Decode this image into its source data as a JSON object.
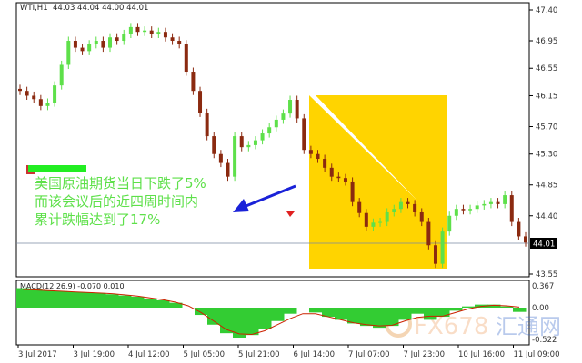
{
  "header": {
    "symbol": "WTI,H1",
    "ohlc": "44.03 44.04 44.00 44.01"
  },
  "annotation": {
    "lines": [
      "美国原油期货当日下跌了5%",
      "而该会议后的近四周时间内",
      "累计跌幅达到了17%"
    ],
    "text_color": "#5ee04a"
  },
  "watermark": "FX678 汇通网",
  "colors": {
    "bull": "#5ee04a",
    "bear": "#8b2a10",
    "highlight": "#ffd400",
    "arrow": "#1a22d8",
    "macd_hist": "#33cc33",
    "signal": "#cc2200"
  },
  "chart_data": [
    {
      "type": "candlestick",
      "title": "WTI,H1",
      "y_ticks": [
        "47.40",
        "46.95",
        "46.55",
        "46.15",
        "45.70",
        "45.30",
        "44.85",
        "44.40",
        "43.55"
      ],
      "ylim": [
        43.55,
        47.4
      ],
      "current_price": "44.01",
      "x_ticks": [
        "3 Jul 2017",
        "3 Jul 19:00",
        "4 Jul 12:00",
        "5 Jul 05:00",
        "5 Jul 21:00",
        "6 Jul 14:00",
        "7 Jul 07:00",
        "7 Jul 23:00",
        "10 Jul 16:00",
        "11 Jul 09:00"
      ],
      "closes": [
        46.22,
        46.15,
        46.1,
        46.0,
        46.05,
        46.3,
        46.6,
        46.95,
        46.85,
        46.8,
        46.9,
        46.95,
        46.85,
        47.0,
        46.95,
        47.05,
        47.15,
        47.08,
        47.1,
        47.05,
        47.08,
        47.0,
        46.95,
        46.9,
        46.5,
        46.22,
        45.9,
        45.56,
        45.3,
        45.17,
        44.97,
        45.56,
        45.4,
        45.43,
        45.5,
        45.6,
        45.69,
        45.8,
        45.89,
        46.09,
        45.82,
        45.36,
        45.3,
        45.23,
        45.1,
        44.97,
        44.95,
        44.9,
        44.6,
        44.44,
        44.24,
        44.3,
        44.31,
        44.45,
        44.5,
        44.6,
        44.57,
        44.45,
        44.31,
        43.97,
        43.7,
        44.17,
        44.4,
        44.5,
        44.48,
        44.5,
        44.55,
        44.57,
        44.6,
        44.57,
        44.7,
        44.31,
        44.1,
        44.01
      ]
    },
    {
      "type": "macd",
      "title": "MACD(12,26,9) -0.070 0.010",
      "y_ticks": [
        "0.367",
        "0.00",
        "-0.522"
      ],
      "ylim": [
        -0.522,
        0.367
      ],
      "histogram": [
        0.32,
        0.3,
        0.28,
        0.27,
        0.26,
        0.25,
        0.24,
        0.22,
        0.2,
        0.18,
        0.15,
        0.12,
        0.08,
        0.0,
        -0.12,
        -0.28,
        -0.42,
        -0.5,
        -0.45,
        -0.35,
        -0.22,
        -0.1,
        0.0,
        -0.08,
        -0.15,
        -0.2,
        -0.26,
        -0.3,
        -0.33,
        -0.3,
        -0.2,
        -0.1,
        -0.2,
        -0.15,
        -0.05,
        0.02,
        0.05,
        0.05,
        0.02,
        -0.07
      ],
      "signal": [
        0.3,
        0.29,
        0.28,
        0.27,
        0.26,
        0.25,
        0.24,
        0.23,
        0.21,
        0.19,
        0.16,
        0.13,
        0.09,
        0.03,
        -0.08,
        -0.22,
        -0.36,
        -0.43,
        -0.44,
        -0.38,
        -0.28,
        -0.18,
        -0.1,
        -0.1,
        -0.15,
        -0.2,
        -0.25,
        -0.28,
        -0.3,
        -0.29,
        -0.22,
        -0.16,
        -0.14,
        -0.14,
        -0.08,
        -0.02,
        0.02,
        0.04,
        0.03,
        0.01
      ]
    }
  ]
}
